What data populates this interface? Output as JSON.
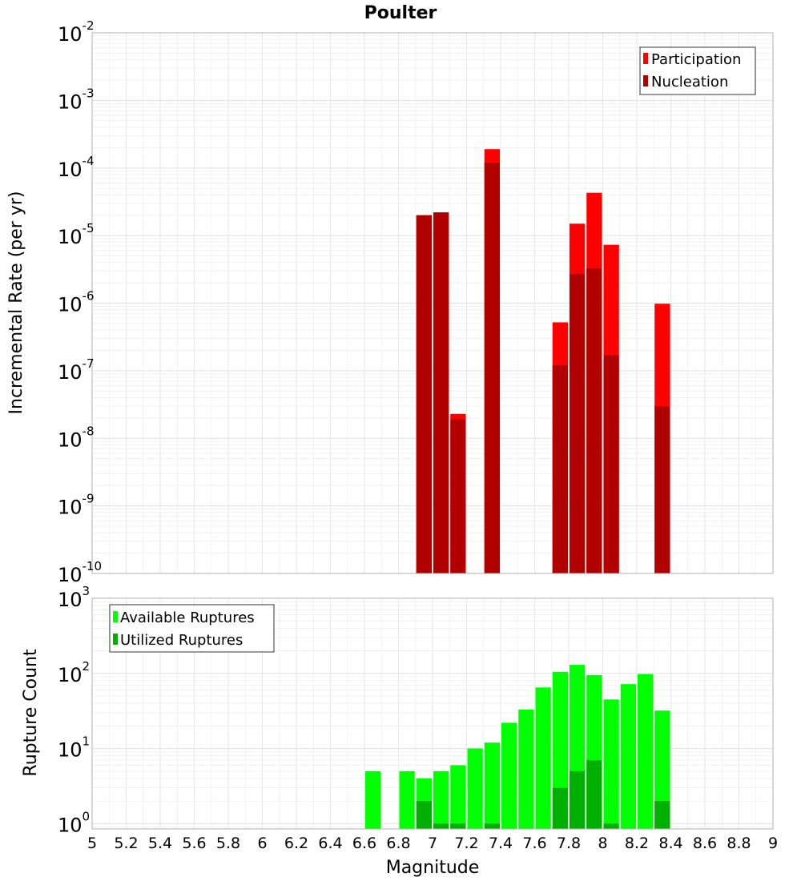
{
  "chart_data": {
    "title": "Poulter",
    "xlabel": "Magnitude",
    "xlim": [
      5,
      9
    ],
    "x_ticks": [
      "5",
      "5.2",
      "5.4",
      "5.6",
      "5.8",
      "6",
      "6.2",
      "6.4",
      "6.6",
      "6.8",
      "7",
      "7.2",
      "7.4",
      "7.6",
      "7.8",
      "8",
      "8.2",
      "8.4",
      "8.6",
      "8.8",
      "9"
    ],
    "panels": [
      {
        "type": "bar",
        "ylabel": "Incremental Rate (per yr)",
        "yscale": "log",
        "ylim": [
          1e-10,
          0.01
        ],
        "y_ticks": [
          {
            "base": "10",
            "exp": "-10"
          },
          {
            "base": "10",
            "exp": "-9"
          },
          {
            "base": "10",
            "exp": "-8"
          },
          {
            "base": "10",
            "exp": "-7"
          },
          {
            "base": "10",
            "exp": "-6"
          },
          {
            "base": "10",
            "exp": "-5"
          },
          {
            "base": "10",
            "exp": "-4"
          },
          {
            "base": "10",
            "exp": "-3"
          },
          {
            "base": "10",
            "exp": "-2"
          }
        ],
        "legend_position": "top-right",
        "series": [
          {
            "name": "Participation",
            "color": "#ff0000",
            "points": [
              [
                6.95,
                2e-05
              ],
              [
                7.05,
                2.2e-05
              ],
              [
                7.15,
                2.3e-08
              ],
              [
                7.35,
                0.00019
              ],
              [
                7.75,
                5.2e-07
              ],
              [
                7.85,
                1.5e-05
              ],
              [
                7.95,
                4.3e-05
              ],
              [
                8.05,
                7.3e-06
              ],
              [
                8.35,
                9.8e-07
              ]
            ]
          },
          {
            "name": "Nucleation",
            "color": "#b00000",
            "points": [
              [
                6.95,
                2e-05
              ],
              [
                7.05,
                2.2e-05
              ],
              [
                7.15,
                1.9e-08
              ],
              [
                7.35,
                0.00012
              ],
              [
                7.75,
                1.2e-07
              ],
              [
                7.85,
                2.7e-06
              ],
              [
                7.95,
                3.3e-06
              ],
              [
                8.05,
                1.7e-07
              ],
              [
                8.35,
                3e-08
              ]
            ]
          }
        ]
      },
      {
        "type": "bar",
        "ylabel": "Rupture Count",
        "yscale": "log",
        "ylim": [
          0.85,
          1000
        ],
        "y_ticks": [
          {
            "base": "10",
            "exp": "0"
          },
          {
            "base": "10",
            "exp": "1"
          },
          {
            "base": "10",
            "exp": "2"
          },
          {
            "base": "10",
            "exp": "3"
          }
        ],
        "legend_position": "top-left",
        "series": [
          {
            "name": "Available Ruptures",
            "color": "#00ff00",
            "points": [
              [
                6.65,
                5
              ],
              [
                6.85,
                5
              ],
              [
                6.95,
                4
              ],
              [
                7.05,
                5
              ],
              [
                7.15,
                6
              ],
              [
                7.25,
                10
              ],
              [
                7.35,
                12
              ],
              [
                7.45,
                22
              ],
              [
                7.55,
                33
              ],
              [
                7.65,
                65
              ],
              [
                7.75,
                105
              ],
              [
                7.85,
                130
              ],
              [
                7.95,
                95
              ],
              [
                8.05,
                45
              ],
              [
                8.15,
                72
              ],
              [
                8.25,
                98
              ],
              [
                8.35,
                32
              ]
            ]
          },
          {
            "name": "Utilized Ruptures",
            "color": "#00b000",
            "points": [
              [
                6.95,
                2
              ],
              [
                7.05,
                1
              ],
              [
                7.15,
                1
              ],
              [
                7.35,
                1
              ],
              [
                7.75,
                3
              ],
              [
                7.85,
                5
              ],
              [
                7.95,
                7
              ],
              [
                8.05,
                1
              ],
              [
                8.35,
                2
              ]
            ]
          }
        ]
      }
    ]
  }
}
